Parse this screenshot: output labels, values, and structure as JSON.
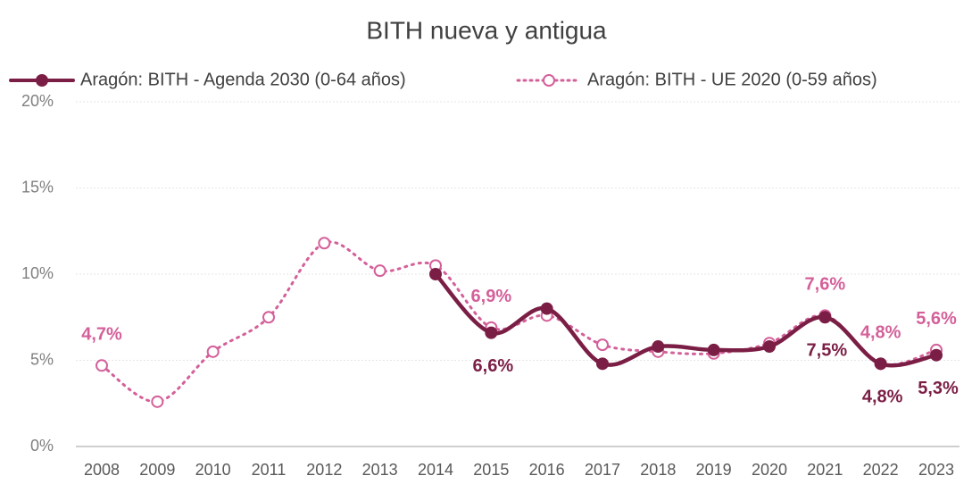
{
  "chart_data": {
    "type": "line",
    "title": "BITH nueva y antigua",
    "categories": [
      "2008",
      "2009",
      "2010",
      "2011",
      "2012",
      "2013",
      "2014",
      "2015",
      "2016",
      "2017",
      "2018",
      "2019",
      "2020",
      "2021",
      "2022",
      "2023"
    ],
    "series": [
      {
        "name": "Aragón: BITH - Agenda 2030 (0-64 años)",
        "color": "#7b1e45",
        "style": "solid",
        "values": [
          null,
          null,
          null,
          null,
          null,
          null,
          10.0,
          6.6,
          8.0,
          4.8,
          5.8,
          5.6,
          5.8,
          7.5,
          4.8,
          5.3
        ],
        "value_labels": [
          null,
          null,
          null,
          null,
          null,
          null,
          null,
          "6,6%",
          null,
          null,
          null,
          null,
          null,
          "7,5%",
          "4,8%",
          "5,3%"
        ]
      },
      {
        "name": "Aragón: BITH - UE 2020 (0-59 años)",
        "color": "#d4609a",
        "style": "dotted",
        "values": [
          4.7,
          2.6,
          5.5,
          7.5,
          11.8,
          10.2,
          10.5,
          6.9,
          7.6,
          5.9,
          5.5,
          5.4,
          6.0,
          7.6,
          4.8,
          5.6
        ],
        "value_labels": [
          "4,7%",
          null,
          null,
          null,
          null,
          null,
          null,
          "6,9%",
          null,
          null,
          null,
          null,
          null,
          "7,6%",
          "4,8%",
          "5,6%"
        ]
      }
    ],
    "ylim": [
      0,
      20
    ],
    "yticks": [
      {
        "value": 0,
        "label": "0%"
      },
      {
        "value": 5,
        "label": "5%"
      },
      {
        "value": 10,
        "label": "10%"
      },
      {
        "value": 15,
        "label": "15%"
      },
      {
        "value": 20,
        "label": "20%"
      }
    ],
    "grid": true,
    "legend": "top"
  }
}
